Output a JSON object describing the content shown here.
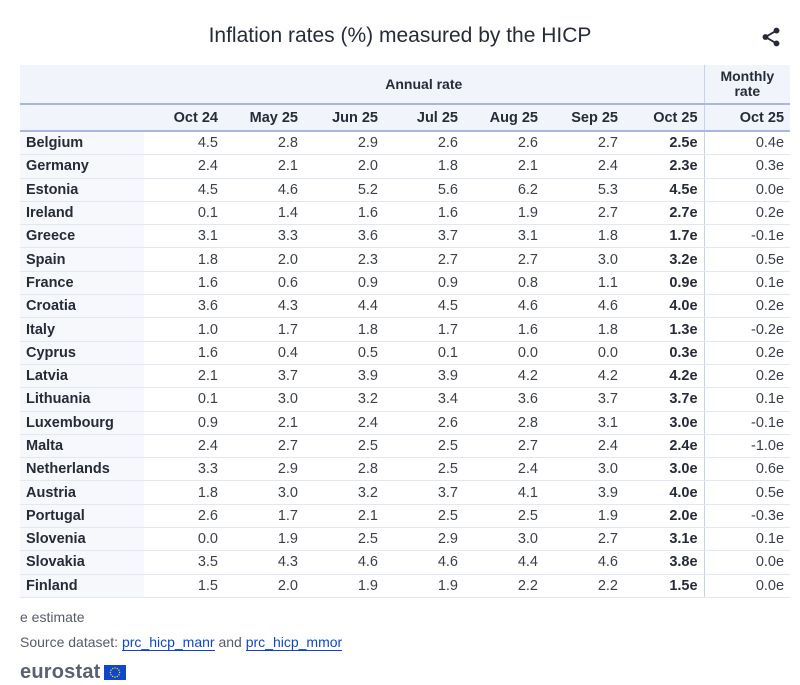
{
  "title": "Inflation rates (%) measured by the HICP",
  "icons": {
    "share": "share-icon",
    "flag": "eu-flag-icon"
  },
  "colors": {
    "header_bg": "#f1f4fb",
    "header_rule": "#aab8e0",
    "link": "#0e47cb",
    "eu_blue": "#0e47cb",
    "eu_star": "#ffde00"
  },
  "chart_data": {
    "type": "table",
    "group_headers": {
      "annual": "Annual rate",
      "monthly": "Monthly rate"
    },
    "columns": [
      "Oct 24",
      "May 25",
      "Jun 25",
      "Jul 25",
      "Aug 25",
      "Sep 25",
      "Oct 25",
      "Oct 25"
    ],
    "rows": [
      {
        "country": "Belgium",
        "values": [
          "4.5",
          "2.8",
          "2.9",
          "2.6",
          "2.6",
          "2.7",
          "2.5e",
          "0.4e"
        ]
      },
      {
        "country": "Germany",
        "values": [
          "2.4",
          "2.1",
          "2.0",
          "1.8",
          "2.1",
          "2.4",
          "2.3e",
          "0.3e"
        ]
      },
      {
        "country": "Estonia",
        "values": [
          "4.5",
          "4.6",
          "5.2",
          "5.6",
          "6.2",
          "5.3",
          "4.5e",
          "0.0e"
        ]
      },
      {
        "country": "Ireland",
        "values": [
          "0.1",
          "1.4",
          "1.6",
          "1.6",
          "1.9",
          "2.7",
          "2.7e",
          "0.2e"
        ]
      },
      {
        "country": "Greece",
        "values": [
          "3.1",
          "3.3",
          "3.6",
          "3.7",
          "3.1",
          "1.8",
          "1.7e",
          "-0.1e"
        ]
      },
      {
        "country": "Spain",
        "values": [
          "1.8",
          "2.0",
          "2.3",
          "2.7",
          "2.7",
          "3.0",
          "3.2e",
          "0.5e"
        ]
      },
      {
        "country": "France",
        "values": [
          "1.6",
          "0.6",
          "0.9",
          "0.9",
          "0.8",
          "1.1",
          "0.9e",
          "0.1e"
        ]
      },
      {
        "country": "Croatia",
        "values": [
          "3.6",
          "4.3",
          "4.4",
          "4.5",
          "4.6",
          "4.6",
          "4.0e",
          "0.2e"
        ]
      },
      {
        "country": "Italy",
        "values": [
          "1.0",
          "1.7",
          "1.8",
          "1.7",
          "1.6",
          "1.8",
          "1.3e",
          "-0.2e"
        ]
      },
      {
        "country": "Cyprus",
        "values": [
          "1.6",
          "0.4",
          "0.5",
          "0.1",
          "0.0",
          "0.0",
          "0.3e",
          "0.2e"
        ]
      },
      {
        "country": "Latvia",
        "values": [
          "2.1",
          "3.7",
          "3.9",
          "3.9",
          "4.2",
          "4.2",
          "4.2e",
          "0.2e"
        ]
      },
      {
        "country": "Lithuania",
        "values": [
          "0.1",
          "3.0",
          "3.2",
          "3.4",
          "3.6",
          "3.7",
          "3.7e",
          "0.1e"
        ]
      },
      {
        "country": "Luxembourg",
        "values": [
          "0.9",
          "2.1",
          "2.4",
          "2.6",
          "2.8",
          "3.1",
          "3.0e",
          "-0.1e"
        ]
      },
      {
        "country": "Malta",
        "values": [
          "2.4",
          "2.7",
          "2.5",
          "2.5",
          "2.7",
          "2.4",
          "2.4e",
          "-1.0e"
        ]
      },
      {
        "country": "Netherlands",
        "values": [
          "3.3",
          "2.9",
          "2.8",
          "2.5",
          "2.4",
          "3.0",
          "3.0e",
          "0.6e"
        ]
      },
      {
        "country": "Austria",
        "values": [
          "1.8",
          "3.0",
          "3.2",
          "3.7",
          "4.1",
          "3.9",
          "4.0e",
          "0.5e"
        ]
      },
      {
        "country": "Portugal",
        "values": [
          "2.6",
          "1.7",
          "2.1",
          "2.5",
          "2.5",
          "1.9",
          "2.0e",
          "-0.3e"
        ]
      },
      {
        "country": "Slovenia",
        "values": [
          "0.0",
          "1.9",
          "2.5",
          "2.9",
          "3.0",
          "2.7",
          "3.1e",
          "0.1e"
        ]
      },
      {
        "country": "Slovakia",
        "values": [
          "3.5",
          "4.3",
          "4.6",
          "4.6",
          "4.4",
          "4.6",
          "3.8e",
          "0.0e"
        ]
      },
      {
        "country": "Finland",
        "values": [
          "1.5",
          "2.0",
          "1.9",
          "1.9",
          "2.2",
          "2.2",
          "1.5e",
          "0.0e"
        ]
      }
    ]
  },
  "footer": {
    "note": "e estimate",
    "source_prefix": "Source dataset: ",
    "link1": "prc_hicp_manr",
    "joiner": " and ",
    "link2": "prc_hicp_mmor",
    "logo_text": "eurostat"
  }
}
